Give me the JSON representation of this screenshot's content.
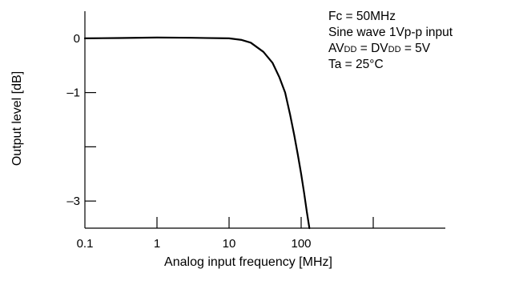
{
  "chart_data": {
    "type": "line",
    "title": "",
    "xlabel": "Analog input frequency [MHz]",
    "ylabel": "Output level [dB]",
    "x_scale": "log",
    "xlim": [
      0.1,
      10000
    ],
    "ylim": [
      -3.5,
      0.5
    ],
    "x_ticks": [
      0.1,
      1,
      10,
      100,
      1000
    ],
    "x_tick_labels": [
      "0.1",
      "1",
      "10",
      "100",
      ""
    ],
    "y_ticks": [
      0,
      -1,
      -2,
      -3
    ],
    "y_tick_labels": [
      "0",
      "–1",
      "",
      "–3"
    ],
    "grid": false,
    "legend": "none",
    "series": [
      {
        "x": [
          0.1,
          0.3,
          1,
          3,
          10,
          15,
          20,
          30,
          40,
          50,
          60,
          70,
          80,
          90,
          100,
          110,
          120,
          130
        ],
        "y": [
          0.0,
          0.005,
          0.015,
          0.01,
          0.0,
          -0.03,
          -0.08,
          -0.25,
          -0.45,
          -0.72,
          -1.0,
          -1.4,
          -1.78,
          -2.15,
          -2.5,
          -2.85,
          -3.2,
          -3.5
        ]
      }
    ],
    "annotations": {
      "fc": "Fc = 50MHz",
      "input": "Sine wave 1Vp-p input",
      "supply": {
        "av": "AV",
        "av_sub": "DD",
        "eq1": " = DV",
        "dv_sub": "DD",
        "eq2": " = 5V"
      },
      "ta": "Ta = 25°C"
    }
  }
}
